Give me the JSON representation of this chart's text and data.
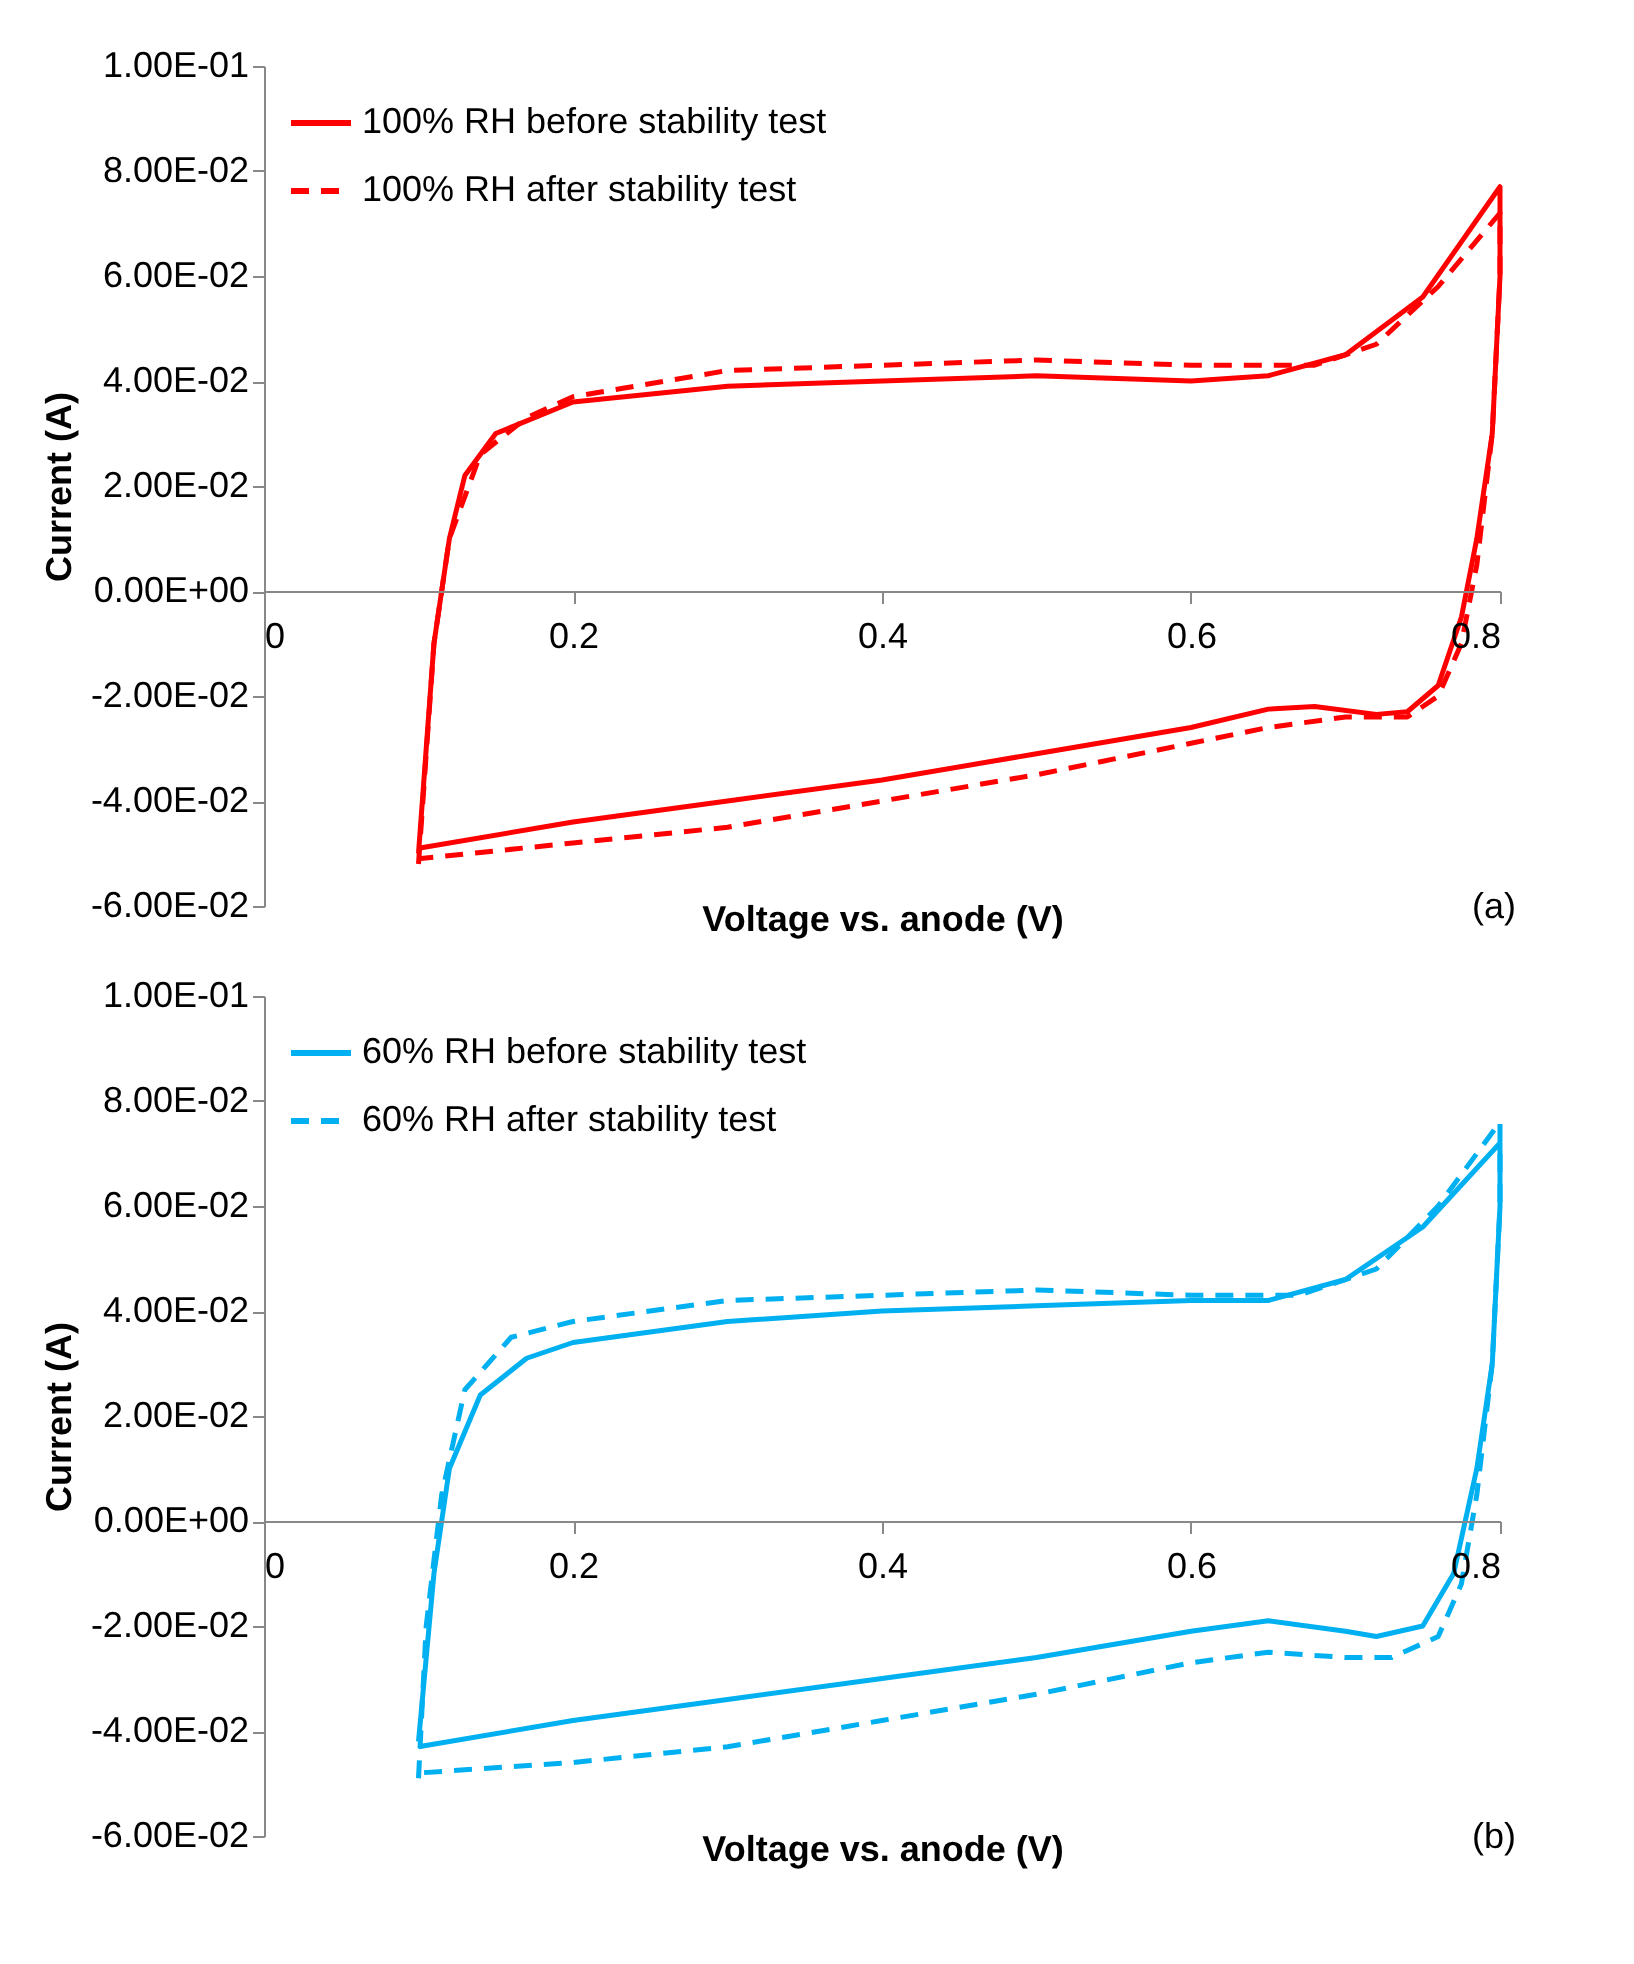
{
  "chart_data": [
    {
      "type": "line",
      "xlabel": "Voltage vs. anode (V)",
      "ylabel": "Current (A)",
      "annotations": [
        "(a)"
      ],
      "xlim": [
        0,
        0.8
      ],
      "xticks": [
        0,
        0.2,
        0.4,
        0.6,
        0.8
      ],
      "ylim": [
        -0.06,
        0.1
      ],
      "yticks": [
        {
          "value": -0.06,
          "label": "-6.00E-02"
        },
        {
          "value": -0.04,
          "label": "-4.00E-02"
        },
        {
          "value": -0.02,
          "label": "-2.00E-02"
        },
        {
          "value": 0,
          "label": "0.00E+00"
        },
        {
          "value": 0.02,
          "label": "2.00E-02"
        },
        {
          "value": 0.04,
          "label": "4.00E-02"
        },
        {
          "value": 0.06,
          "label": "6.00E-02"
        },
        {
          "value": 0.08,
          "label": "8.00E-02"
        },
        {
          "value": 0.1,
          "label": "1.00E-01"
        }
      ],
      "grid": false,
      "legend": "top left",
      "series": [
        {
          "name": "100% RH before stability test",
          "color": "#ff0000",
          "line_style": "solid",
          "x": [
            0.1,
            0.11,
            0.12,
            0.13,
            0.15,
            0.2,
            0.3,
            0.4,
            0.5,
            0.6,
            0.65,
            0.7,
            0.75,
            0.8,
            0.8,
            0.795,
            0.785,
            0.775,
            0.76,
            0.74,
            0.72,
            0.68,
            0.65,
            0.6,
            0.5,
            0.4,
            0.3,
            0.2,
            0.1
          ],
          "values": [
            -0.05,
            -0.01,
            0.01,
            0.022,
            0.03,
            0.036,
            0.039,
            0.04,
            0.041,
            0.04,
            0.041,
            0.045,
            0.056,
            0.077,
            0.06,
            0.03,
            0.01,
            -0.005,
            -0.018,
            -0.023,
            -0.0235,
            -0.022,
            -0.0225,
            -0.026,
            -0.031,
            -0.036,
            -0.04,
            -0.044,
            -0.049
          ]
        },
        {
          "name": "100% RH after stability test",
          "color": "#ff0000",
          "line_style": "dashed",
          "x": [
            0.1,
            0.11,
            0.12,
            0.14,
            0.17,
            0.2,
            0.3,
            0.4,
            0.5,
            0.6,
            0.68,
            0.72,
            0.76,
            0.8,
            0.8,
            0.795,
            0.785,
            0.775,
            0.76,
            0.74,
            0.7,
            0.65,
            0.6,
            0.5,
            0.4,
            0.3,
            0.2,
            0.1
          ],
          "values": [
            -0.052,
            -0.01,
            0.01,
            0.026,
            0.033,
            0.037,
            0.042,
            0.043,
            0.044,
            0.043,
            0.043,
            0.047,
            0.058,
            0.072,
            0.06,
            0.03,
            0.005,
            -0.01,
            -0.02,
            -0.024,
            -0.024,
            -0.026,
            -0.029,
            -0.035,
            -0.04,
            -0.045,
            -0.048,
            -0.051
          ]
        }
      ]
    },
    {
      "type": "line",
      "xlabel": "Voltage vs. anode (V)",
      "ylabel": "Current (A)",
      "annotations": [
        "(b)"
      ],
      "xlim": [
        0,
        0.8
      ],
      "xticks": [
        0,
        0.2,
        0.4,
        0.6,
        0.8
      ],
      "ylim": [
        -0.06,
        0.1
      ],
      "yticks": [
        {
          "value": -0.06,
          "label": "-6.00E-02"
        },
        {
          "value": -0.04,
          "label": "-4.00E-02"
        },
        {
          "value": -0.02,
          "label": "-2.00E-02"
        },
        {
          "value": 0,
          "label": "0.00E+00"
        },
        {
          "value": 0.02,
          "label": "2.00E-02"
        },
        {
          "value": 0.04,
          "label": "4.00E-02"
        },
        {
          "value": 0.06,
          "label": "6.00E-02"
        },
        {
          "value": 0.08,
          "label": "8.00E-02"
        },
        {
          "value": 0.1,
          "label": "1.00E-01"
        }
      ],
      "grid": false,
      "legend": "top left",
      "series": [
        {
          "name": "60% RH before stability test",
          "color": "#00b0f0",
          "line_style": "solid",
          "x": [
            0.1,
            0.11,
            0.12,
            0.14,
            0.17,
            0.2,
            0.3,
            0.4,
            0.5,
            0.6,
            0.65,
            0.7,
            0.75,
            0.8,
            0.8,
            0.795,
            0.785,
            0.77,
            0.75,
            0.72,
            0.7,
            0.65,
            0.6,
            0.5,
            0.4,
            0.3,
            0.2,
            0.1
          ],
          "values": [
            -0.042,
            -0.01,
            0.01,
            0.024,
            0.031,
            0.034,
            0.038,
            0.04,
            0.041,
            0.042,
            0.042,
            0.046,
            0.056,
            0.072,
            0.06,
            0.03,
            0.01,
            -0.01,
            -0.02,
            -0.022,
            -0.021,
            -0.019,
            -0.021,
            -0.026,
            -0.03,
            -0.034,
            -0.038,
            -0.043
          ]
        },
        {
          "name": "60% RH after stability test",
          "color": "#00b0f0",
          "line_style": "dashed",
          "x": [
            0.1,
            0.105,
            0.115,
            0.13,
            0.16,
            0.2,
            0.3,
            0.4,
            0.5,
            0.6,
            0.67,
            0.72,
            0.76,
            0.8,
            0.8,
            0.795,
            0.785,
            0.775,
            0.76,
            0.73,
            0.7,
            0.65,
            0.6,
            0.5,
            0.4,
            0.3,
            0.2,
            0.1
          ],
          "values": [
            -0.049,
            -0.02,
            0.005,
            0.025,
            0.035,
            0.038,
            0.042,
            0.043,
            0.044,
            0.043,
            0.043,
            0.048,
            0.06,
            0.076,
            0.06,
            0.03,
            0.005,
            -0.012,
            -0.022,
            -0.026,
            -0.026,
            -0.025,
            -0.027,
            -0.033,
            -0.038,
            -0.043,
            -0.046,
            -0.048
          ]
        }
      ]
    }
  ]
}
